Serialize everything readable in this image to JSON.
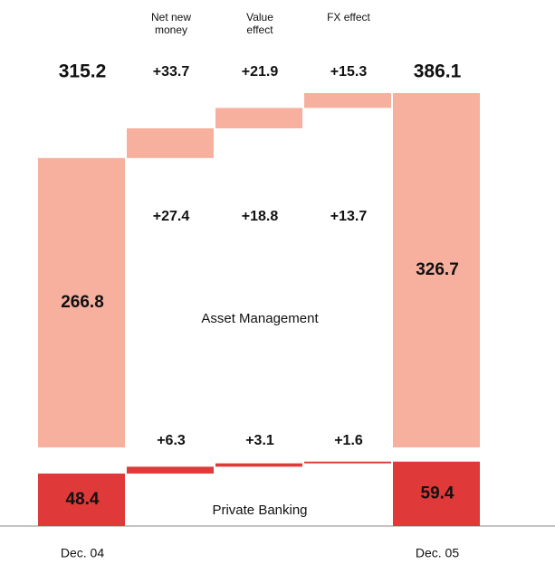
{
  "chart_data": {
    "type": "waterfall",
    "categories": [
      "Dec. 04",
      "Net new money",
      "Value effect",
      "FX effect",
      "Dec. 05"
    ],
    "totals": {
      "values": [
        315.2,
        33.7,
        21.9,
        15.3,
        386.1
      ],
      "value_labels": [
        "315.2",
        "+33.7",
        "+21.9",
        "+15.3",
        "386.1"
      ]
    },
    "series": [
      {
        "name": "Private Banking",
        "color": "#e0393a",
        "values": [
          48.4,
          6.3,
          3.1,
          1.6,
          59.4
        ],
        "value_labels": [
          "48.4",
          "+6.3",
          "+3.1",
          "+1.6",
          "59.4"
        ]
      },
      {
        "name": "Asset Management",
        "color": "#f7b09e",
        "values": [
          266.8,
          27.4,
          18.8,
          13.7,
          326.7
        ],
        "value_labels": [
          "266.8",
          "+27.4",
          "+18.8",
          "+13.7",
          "326.7"
        ]
      }
    ]
  }
}
